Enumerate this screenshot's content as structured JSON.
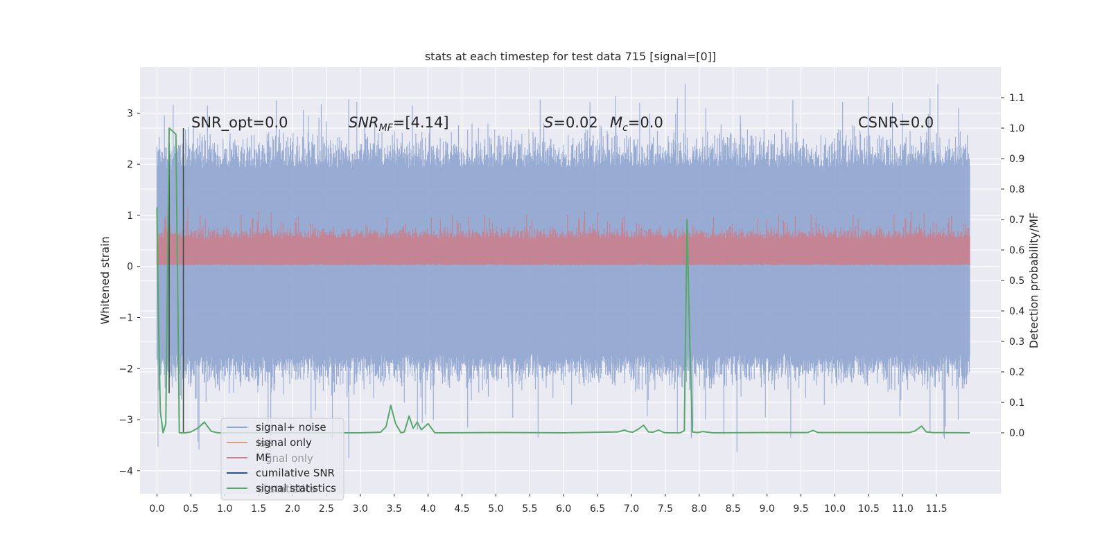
{
  "chart_data": {
    "type": "line",
    "title": "stats at each timestep for test data 715 [signal=[0]]",
    "xlabel": "",
    "ylabel": "Whitened strain",
    "ylabel_right": "Detection probability/MF",
    "xlim": [
      -0.25,
      12.45
    ],
    "ylim": [
      -4.45,
      3.9
    ],
    "ylim_right": [
      -0.2,
      1.2
    ],
    "grid": true,
    "legend_position": "lower-left",
    "x_ticks": [
      "0.0",
      "0.5",
      "1.0",
      "1.5",
      "2.0",
      "2.5",
      "3.0",
      "3.5",
      "4.0",
      "4.5",
      "5.0",
      "5.5",
      "6.0",
      "6.5",
      "7.0",
      "7.5",
      "8.0",
      "8.5",
      "9.0",
      "9.5",
      "10.0",
      "10.5",
      "11.0",
      "11.5"
    ],
    "y_ticks": [
      "3",
      "2",
      "1",
      "0",
      "−1",
      "−2",
      "−3",
      "−4"
    ],
    "y_ticks_right": [
      "1.1",
      "1.0",
      "0.9",
      "0.8",
      "0.7",
      "0.6",
      "0.5",
      "0.4",
      "0.3",
      "0.2",
      "0.1",
      "0.0"
    ],
    "annotations": {
      "snr_opt": "SNR_opt=0.0",
      "snr_mf_main": "SNR",
      "snr_mf_sub": "MF",
      "snr_mf_rest": "=[4.14]",
      "s_label": "S",
      "s_rest": "=0.02",
      "mc_label": "M",
      "mc_sub": "c",
      "mc_rest": "=0.0",
      "csnr": "CSNR=0.0"
    },
    "series": [
      {
        "name": "signal+ noise",
        "color": "#8ea4cf",
        "x_range": [
          0,
          11.99
        ],
        "ymin_typical": -2.2,
        "ymax_typical": 2.5
      },
      {
        "name": "signal only",
        "color": "#dd9d82",
        "x": [
          0,
          11.99
        ],
        "y": [
          0,
          0
        ]
      },
      {
        "name": "MF",
        "color": "#c7828f",
        "axis": "right",
        "x_range": [
          0,
          11.99
        ],
        "ymin": 0.55,
        "ymax_typical": 0.66
      },
      {
        "name": "cumilative SNR",
        "color": "#2d4f8e",
        "x": [],
        "y": []
      },
      {
        "name": "signal statistics",
        "color": "#55a868",
        "axis": "right",
        "x": [
          0.0,
          0.02,
          0.05,
          0.09,
          0.13,
          0.18,
          0.23,
          0.28,
          0.33,
          0.38,
          0.39,
          0.42,
          0.5,
          0.6,
          0.7,
          0.8,
          0.9,
          1.0,
          2.0,
          3.0,
          3.3,
          3.38,
          3.45,
          3.52,
          3.6,
          3.65,
          3.72,
          3.78,
          3.84,
          3.9,
          4.0,
          4.1,
          5.0,
          6.0,
          6.8,
          6.9,
          6.95,
          7.02,
          7.1,
          7.18,
          7.25,
          7.32,
          7.4,
          7.48,
          7.55,
          7.62,
          7.72,
          7.78,
          7.82,
          7.86,
          7.9,
          7.98,
          8.05,
          8.2,
          9.0,
          9.6,
          9.68,
          9.75,
          10.2,
          11.1,
          11.18,
          11.28,
          11.35,
          11.45,
          11.99
        ],
        "y": [
          0.74,
          0.4,
          0.07,
          0.0,
          0.03,
          1.0,
          0.99,
          0.98,
          0.0,
          0.0,
          0.0,
          0.0,
          0.003,
          0.015,
          0.035,
          0.005,
          0.0,
          0.0,
          0.0,
          0.0,
          0.002,
          0.02,
          0.09,
          0.03,
          0.0,
          0.003,
          0.055,
          0.015,
          0.035,
          0.01,
          0.03,
          0.0,
          0.001,
          0.0,
          0.003,
          0.009,
          0.004,
          0.002,
          0.012,
          0.025,
          0.003,
          0.002,
          0.009,
          0.001,
          0.0,
          0.0,
          0.0,
          0.007,
          0.7,
          0.3,
          0.003,
          0.001,
          0.004,
          0.0,
          0.001,
          0.001,
          0.008,
          0.001,
          0.001,
          0.001,
          0.006,
          0.022,
          0.003,
          0.001,
          0.0
        ]
      }
    ],
    "extra_marks": [
      {
        "name": "dark marker line",
        "color": "#3b4a40",
        "x": [
          0.39,
          0.39
        ],
        "y_right": [
          1.0,
          0.0
        ]
      },
      {
        "name": "dark marker line",
        "color": "#3b4a40",
        "x": [
          0.18,
          0.18
        ],
        "y_right": [
          0.95,
          0.13
        ]
      }
    ]
  },
  "legend": {
    "items": [
      {
        "label": "signal+ noise",
        "color": "#8ea4cf"
      },
      {
        "label": "signal only",
        "color": "#dd9d82"
      },
      {
        "label": "MF",
        "color": "#c7828f"
      },
      {
        "label": "cumilative SNR",
        "color": "#2d4f8e"
      },
      {
        "label": "signal statistics",
        "color": "#55a868"
      }
    ]
  },
  "colors": {
    "plot_background": "#eaeaf2",
    "grid": "#ffffff",
    "text": "#262626"
  }
}
